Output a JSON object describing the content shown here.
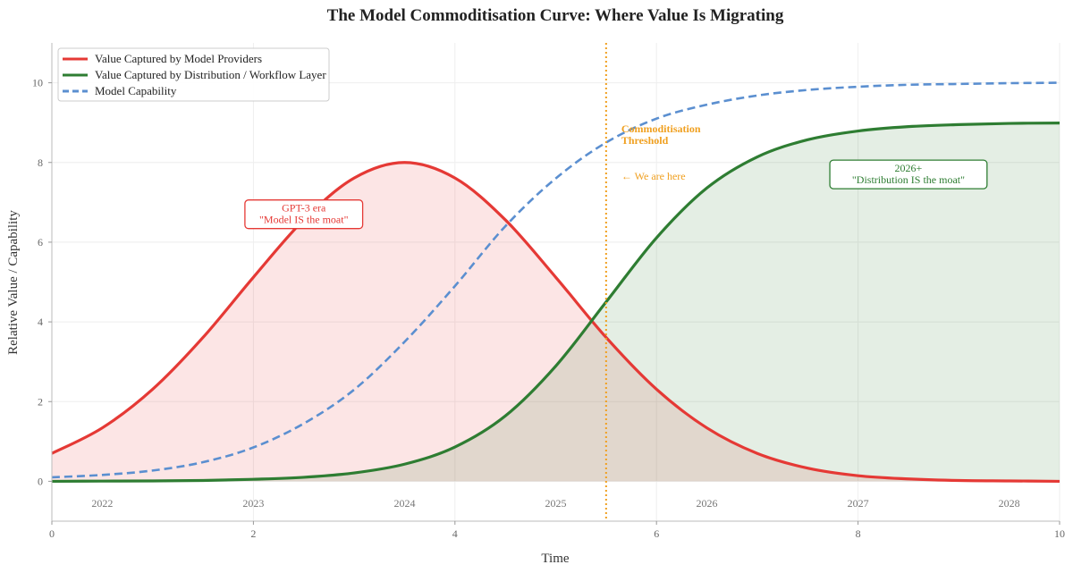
{
  "chart_data": {
    "type": "line",
    "title": "The Model Commoditisation Curve: Where Value Is Migrating",
    "xlabel": "Time",
    "ylabel": "Relative Value / Capability",
    "xlim": [
      0,
      10
    ],
    "ylim": [
      -1,
      11
    ],
    "xticks": [
      0,
      2,
      4,
      6,
      8,
      10
    ],
    "yticks": [
      0,
      2,
      4,
      6,
      8,
      10
    ],
    "grid": true,
    "legend": "top-left",
    "year_labels": [
      {
        "x": 0.5,
        "label": "2022"
      },
      {
        "x": 2,
        "label": "2023"
      },
      {
        "x": 3.5,
        "label": "2024"
      },
      {
        "x": 5,
        "label": "2025"
      },
      {
        "x": 6.5,
        "label": "2026"
      },
      {
        "x": 8,
        "label": "2027"
      },
      {
        "x": 9.5,
        "label": "2028"
      }
    ],
    "x": [
      0,
      0.5,
      1,
      1.5,
      2,
      2.5,
      3,
      3.5,
      4,
      4.5,
      5,
      5.5,
      6,
      6.5,
      7,
      7.5,
      8,
      8.5,
      9,
      9.5,
      10
    ],
    "series": [
      {
        "name": "Value Captured by Model Providers",
        "color": "#e53935",
        "style": "solid",
        "filled": true,
        "values": [
          0.7,
          1.34,
          2.31,
          3.61,
          5.12,
          6.56,
          7.61,
          8.0,
          7.61,
          6.56,
          5.12,
          3.61,
          2.31,
          1.34,
          0.7,
          0.33,
          0.14,
          0.06,
          0.02,
          0.01,
          0.0
        ]
      },
      {
        "name": "Value Captured by Distribution / Workflow Layer",
        "color": "#2e7d32",
        "style": "solid",
        "filled": true,
        "values": [
          0.0,
          0.005,
          0.01,
          0.02,
          0.05,
          0.1,
          0.21,
          0.43,
          0.86,
          1.64,
          2.89,
          4.5,
          6.11,
          7.36,
          8.14,
          8.57,
          8.79,
          8.9,
          8.95,
          8.98,
          8.99
        ]
      },
      {
        "name": "Model Capability",
        "color": "#5b8fd0",
        "style": "dashed",
        "filled": false,
        "values": [
          0.1,
          0.16,
          0.27,
          0.48,
          0.85,
          1.45,
          2.3,
          3.5,
          4.9,
          6.4,
          7.6,
          8.5,
          9.1,
          9.45,
          9.68,
          9.82,
          9.9,
          9.95,
          9.97,
          9.99,
          10.0
        ]
      }
    ],
    "threshold": {
      "x": 5.5,
      "color": "#f0a020",
      "label": "Commoditisation\nThreshold",
      "note": "← We are here"
    },
    "annotations": [
      {
        "x": 2.5,
        "y": 6.7,
        "text": "GPT-3 era\n\"Model IS the moat\"",
        "color": "#e53935"
      },
      {
        "x": 8.5,
        "y": 7.7,
        "text": "2026+\n\"Distribution IS the moat\"",
        "color": "#2e7d32"
      }
    ]
  }
}
